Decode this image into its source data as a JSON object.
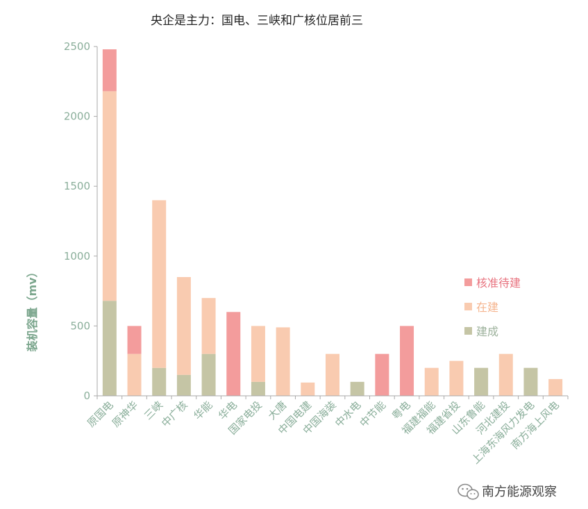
{
  "chart_data": {
    "type": "bar",
    "stacked": true,
    "title": "央企是主力：国电、三峡和广核位居前三",
    "ylabel": "装机容量（mv）",
    "xlabel": "",
    "ylim": [
      0,
      2500
    ],
    "yticks": [
      0,
      500,
      1000,
      1500,
      2000,
      2500
    ],
    "categories": [
      "原国电",
      "原神华",
      "三峡",
      "中广核",
      "华能",
      "华电",
      "国家电投",
      "大唐",
      "中国电建",
      "中国海装",
      "中水电",
      "中节能",
      "粤电",
      "福建福能",
      "福建省投",
      "山东鲁能",
      "河北建投",
      "上海东海风力发电",
      "南方海上风电"
    ],
    "series": [
      {
        "name": "建成",
        "color": "#c5c5a5",
        "values": [
          680,
          0,
          200,
          150,
          300,
          0,
          100,
          0,
          0,
          0,
          100,
          0,
          0,
          0,
          0,
          200,
          0,
          200,
          0
        ]
      },
      {
        "name": "在建",
        "color": "#f9cbb0",
        "values": [
          1500,
          300,
          1200,
          700,
          400,
          0,
          400,
          490,
          95,
          300,
          0,
          0,
          0,
          200,
          250,
          0,
          300,
          0,
          120
        ]
      },
      {
        "name": "核准待建",
        "color": "#f39c9c",
        "values": [
          300,
          200,
          0,
          0,
          0,
          600,
          0,
          0,
          0,
          0,
          0,
          300,
          500,
          0,
          0,
          0,
          0,
          0,
          0
        ]
      }
    ],
    "legend_position": "right",
    "legend_order": [
      "核准待建",
      "在建",
      "建成"
    ],
    "legend_colors": {
      "核准待建": "#e8737f",
      "在建": "#f5b48e",
      "建成": "#9db29c"
    },
    "grid": false
  },
  "watermark": {
    "text": "南方能源观察",
    "icon": "wechat-icon"
  },
  "colors": {
    "axis": "#aaaaaa",
    "tick_text": "#8aae9a",
    "ylabel_text": "#7aa58c"
  }
}
